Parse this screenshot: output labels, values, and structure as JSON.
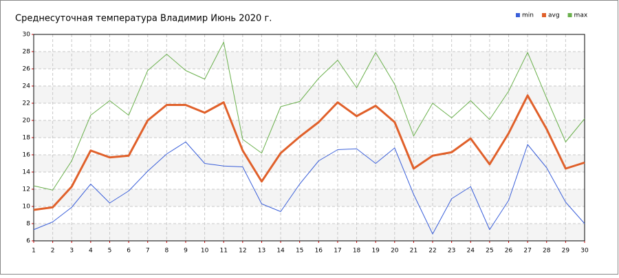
{
  "chart_data": {
    "type": "line",
    "title": "Среднесуточная температура Владимир  Июнь 2020 г.",
    "x": [
      1,
      2,
      3,
      4,
      5,
      6,
      7,
      8,
      9,
      10,
      11,
      12,
      13,
      14,
      15,
      16,
      17,
      18,
      19,
      20,
      21,
      22,
      23,
      24,
      25,
      26,
      27,
      28,
      29,
      30
    ],
    "xlim": [
      1,
      30
    ],
    "xticks": [
      1,
      2,
      3,
      4,
      5,
      6,
      7,
      8,
      9,
      10,
      11,
      12,
      13,
      14,
      15,
      16,
      17,
      18,
      19,
      20,
      21,
      22,
      23,
      24,
      25,
      26,
      27,
      28,
      29,
      30
    ],
    "ylim": [
      6,
      30
    ],
    "yticks": [
      6,
      8,
      10,
      12,
      14,
      16,
      18,
      20,
      22,
      24,
      26,
      28,
      30
    ],
    "grid": true,
    "legend": "top-right",
    "series": [
      {
        "name": "min",
        "color": "#3a5fd9",
        "width": 1,
        "values": [
          7.3,
          8.2,
          9.9,
          12.6,
          10.4,
          11.8,
          14.1,
          16.1,
          17.5,
          15.0,
          14.7,
          14.6,
          10.3,
          9.4,
          12.6,
          15.3,
          16.6,
          16.7,
          15.0,
          16.8,
          11.4,
          6.8,
          10.9,
          12.3,
          7.3,
          10.7,
          17.2,
          14.5,
          10.5,
          8.0
        ]
      },
      {
        "name": "avg",
        "color": "#e0602a",
        "width": 3,
        "values": [
          9.6,
          9.9,
          12.3,
          16.5,
          15.7,
          15.9,
          20.0,
          21.8,
          21.8,
          20.9,
          22.1,
          16.5,
          12.9,
          16.2,
          18.1,
          19.8,
          22.1,
          20.5,
          21.7,
          19.8,
          14.4,
          15.9,
          16.3,
          17.9,
          14.9,
          18.5,
          22.9,
          19.0,
          14.4,
          15.1
        ]
      },
      {
        "name": "max",
        "color": "#6ab04c",
        "width": 1,
        "values": [
          12.4,
          11.9,
          15.3,
          20.6,
          22.3,
          20.6,
          25.8,
          27.7,
          25.8,
          24.8,
          29.1,
          17.8,
          16.2,
          21.6,
          22.2,
          24.9,
          27.0,
          23.8,
          27.9,
          24.2,
          18.2,
          22.0,
          20.3,
          22.3,
          20.1,
          23.4,
          27.9,
          22.6,
          17.5,
          20.2
        ]
      }
    ]
  }
}
